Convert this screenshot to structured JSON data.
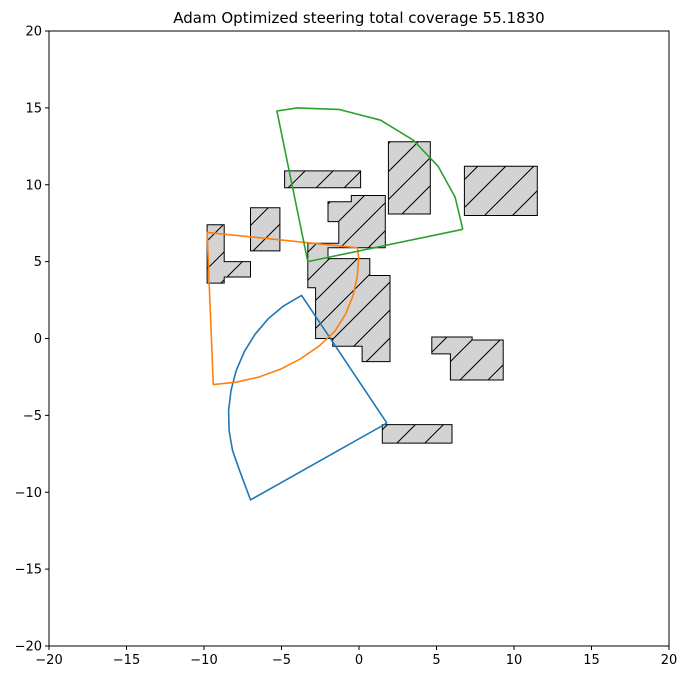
{
  "chart_data": {
    "type": "line",
    "title": "Adam Optimized steering total coverage 55.1830",
    "xlabel": "",
    "ylabel": "",
    "xlim": [
      -20,
      20
    ],
    "ylim": [
      -20,
      20
    ],
    "xticks": [
      -20,
      -15,
      -10,
      -5,
      0,
      5,
      10,
      15,
      20
    ],
    "yticks": [
      -20,
      -15,
      -10,
      -5,
      0,
      5,
      10,
      15,
      20
    ],
    "grid": false,
    "obstacle_fill": "#d3d3d3",
    "obstacle_edge": "#000000",
    "obstacles": [
      [
        [
          -4.8,
          9.8
        ],
        [
          0.1,
          9.8
        ],
        [
          0.1,
          10.9
        ],
        [
          -4.8,
          10.9
        ]
      ],
      [
        [
          1.9,
          8.1
        ],
        [
          4.6,
          8.1
        ],
        [
          4.6,
          12.8
        ],
        [
          1.9,
          12.8
        ]
      ],
      [
        [
          6.8,
          8.0
        ],
        [
          11.5,
          8.0
        ],
        [
          11.5,
          11.2
        ],
        [
          6.8,
          11.2
        ]
      ],
      [
        [
          -7.0,
          5.7
        ],
        [
          -5.1,
          5.7
        ],
        [
          -5.1,
          8.5
        ],
        [
          -7.0,
          8.5
        ]
      ],
      [
        [
          -9.8,
          3.6
        ],
        [
          -8.7,
          3.6
        ],
        [
          -8.7,
          4.0
        ],
        [
          -7.0,
          4.0
        ],
        [
          -7.0,
          5.0
        ],
        [
          -8.7,
          5.0
        ],
        [
          -8.7,
          7.4
        ],
        [
          -9.8,
          7.4
        ]
      ],
      [
        [
          -2.0,
          5.9
        ],
        [
          -2.0,
          5.2
        ],
        [
          0.7,
          5.2
        ],
        [
          0.7,
          4.1
        ],
        [
          2.0,
          4.1
        ],
        [
          2.0,
          -1.5
        ],
        [
          0.2,
          -1.5
        ],
        [
          0.2,
          -0.5
        ],
        [
          -1.7,
          -0.5
        ],
        [
          -1.7,
          0.0
        ],
        [
          -2.8,
          0.0
        ],
        [
          -2.8,
          3.3
        ],
        [
          -3.3,
          3.3
        ],
        [
          -3.3,
          6.2
        ],
        [
          -1.3,
          6.2
        ],
        [
          -1.3,
          7.6
        ],
        [
          -2.0,
          7.6
        ],
        [
          -2.0,
          8.9
        ],
        [
          -0.5,
          8.9
        ],
        [
          -0.5,
          9.3
        ],
        [
          1.7,
          9.3
        ],
        [
          1.7,
          5.9
        ]
      ],
      [
        [
          4.7,
          -1.0
        ],
        [
          4.7,
          0.1
        ],
        [
          7.3,
          0.1
        ],
        [
          7.3,
          -0.1
        ],
        [
          9.3,
          -0.1
        ],
        [
          9.3,
          -2.7
        ],
        [
          5.9,
          -2.7
        ],
        [
          5.9,
          -1.0
        ]
      ],
      [
        [
          1.5,
          -6.8
        ],
        [
          6.0,
          -6.8
        ],
        [
          6.0,
          -5.6
        ],
        [
          1.5,
          -5.6
        ]
      ]
    ],
    "series": [
      {
        "color": "#1f77b4",
        "points": [
          [
            1.8,
            -5.5
          ],
          [
            -3.7,
            2.8
          ],
          [
            -4.85,
            2.13
          ],
          [
            -5.86,
            1.28
          ],
          [
            -6.71,
            0.27
          ],
          [
            -7.4,
            -0.86
          ],
          [
            -7.92,
            -2.09
          ],
          [
            -8.26,
            -3.38
          ],
          [
            -8.41,
            -4.69
          ],
          [
            -8.38,
            -6.0
          ],
          [
            -8.16,
            -7.27
          ],
          [
            -7.75,
            -8.47
          ],
          [
            -7.0,
            -10.5
          ],
          [
            1.8,
            -5.5
          ]
        ]
      },
      {
        "color": "#ff7f0e",
        "points": [
          [
            -0.1,
            5.9
          ],
          [
            -9.8,
            6.9
          ],
          [
            -9.4,
            -3.0
          ],
          [
            -7.93,
            -2.84
          ],
          [
            -6.47,
            -2.51
          ],
          [
            -5.08,
            -2.0
          ],
          [
            -3.78,
            -1.33
          ],
          [
            -2.59,
            -0.5
          ],
          [
            -1.56,
            0.47
          ],
          [
            -0.86,
            1.6
          ],
          [
            -0.38,
            2.81
          ],
          [
            -0.11,
            4.04
          ],
          [
            -0.02,
            5.26
          ],
          [
            -0.1,
            5.9
          ]
        ]
      },
      {
        "color": "#2ca02c",
        "points": [
          [
            6.7,
            7.1
          ],
          [
            -3.3,
            5.0
          ],
          [
            -5.3,
            14.8
          ],
          [
            -4.0,
            15.0
          ],
          [
            -1.3,
            14.9
          ],
          [
            1.4,
            14.2
          ],
          [
            3.5,
            12.9
          ],
          [
            5.1,
            11.2
          ],
          [
            6.2,
            9.2
          ],
          [
            6.7,
            7.1
          ]
        ]
      }
    ]
  }
}
